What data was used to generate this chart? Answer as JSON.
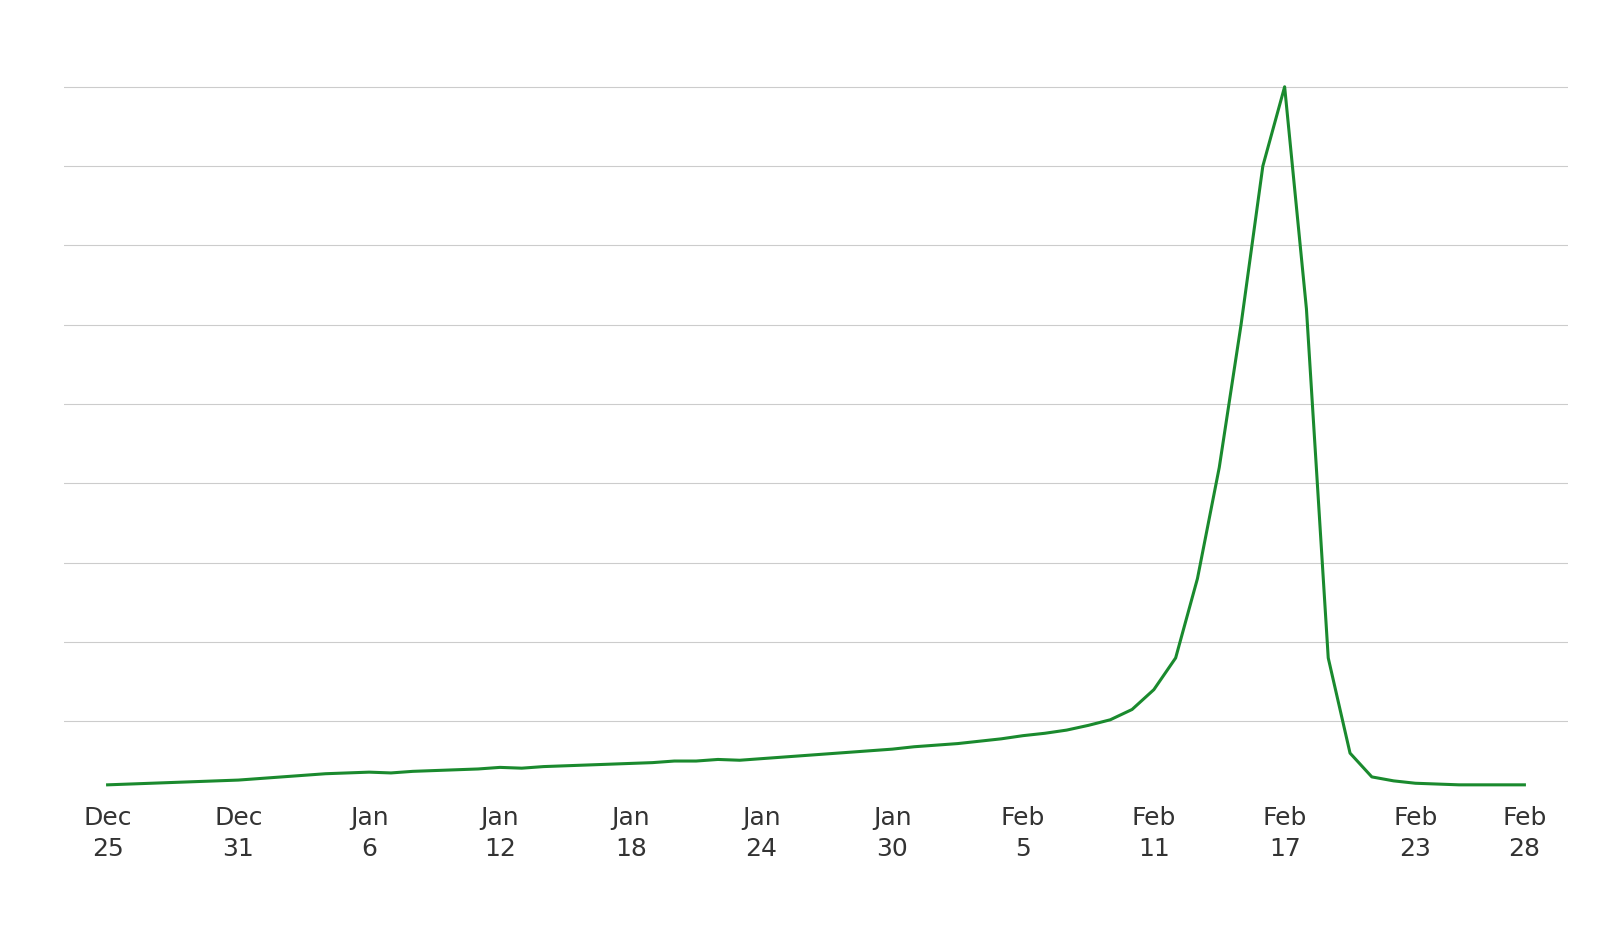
{
  "line_color": "#1a8a2e",
  "line_width": 2.2,
  "background_color": "#ffffff",
  "grid_color": "#cccccc",
  "x_labels": [
    "Dec\n25",
    "Dec\n31",
    "Jan\n6",
    "Jan\n12",
    "Jan\n18",
    "Jan\n24",
    "Jan\n30",
    "Feb\n5",
    "Feb\n11",
    "Feb\n17",
    "Feb\n23",
    "Feb\n28"
  ],
  "x_positions": [
    0,
    6,
    12,
    18,
    24,
    30,
    36,
    42,
    48,
    54,
    60,
    65
  ],
  "dates": [
    0,
    1,
    2,
    3,
    4,
    5,
    6,
    7,
    8,
    9,
    10,
    11,
    12,
    13,
    14,
    15,
    16,
    17,
    18,
    19,
    20,
    21,
    22,
    23,
    24,
    25,
    26,
    27,
    28,
    29,
    30,
    31,
    32,
    33,
    34,
    35,
    36,
    37,
    38,
    39,
    40,
    41,
    42,
    43,
    44,
    45,
    46,
    47,
    48,
    49,
    50,
    51,
    52,
    53,
    54,
    55,
    56,
    57,
    58,
    59,
    60,
    61,
    62,
    63,
    64,
    65
  ],
  "values": [
    2,
    2.1,
    2.2,
    2.3,
    2.4,
    2.5,
    2.6,
    2.8,
    3.0,
    3.2,
    3.4,
    3.5,
    3.6,
    3.5,
    3.7,
    3.8,
    3.9,
    4.0,
    4.2,
    4.1,
    4.3,
    4.4,
    4.5,
    4.6,
    4.7,
    4.8,
    5.0,
    5.0,
    5.2,
    5.1,
    5.3,
    5.5,
    5.7,
    5.9,
    6.1,
    6.3,
    6.5,
    6.8,
    7.0,
    7.2,
    7.5,
    7.8,
    8.2,
    8.5,
    8.9,
    9.5,
    10.2,
    11.5,
    14.0,
    18.0,
    28.0,
    42.0,
    60.0,
    80.0,
    90.0,
    62.0,
    18.0,
    6.0,
    3.0,
    2.5,
    2.2,
    2.1,
    2.0,
    2.0,
    2.0,
    2.0
  ],
  "ylim": [
    0,
    95
  ],
  "xlim": [
    -2,
    67
  ],
  "tick_label_fontsize": 18,
  "tick_label_color": "#333333"
}
